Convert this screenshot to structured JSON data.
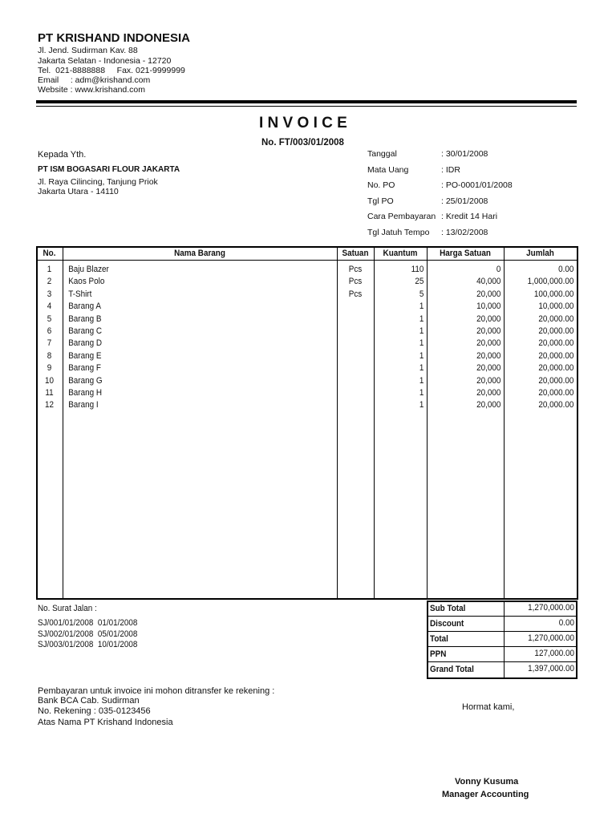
{
  "company": {
    "name": "PT KRISHAND INDONESIA",
    "address1": "Jl. Jend. Sudirman Kav. 88",
    "address2": "Jakarta Selatan - Indonesia - 12720",
    "phone": "Tel.  021-8888888     Fax. 021-9999999",
    "email": "Email     : adm@krishand.com",
    "website": "Website : www.krishand.com"
  },
  "invoice": {
    "title": "I N V O I C E",
    "number": "No. FT/003/01/2008"
  },
  "customer": {
    "greeting": "Kepada Yth.",
    "name": "PT ISM BOGASARI FLOUR JAKARTA",
    "address1": "Jl. Raya Cilincing, Tanjung Priok",
    "address2": "Jakarta Utara - 14110"
  },
  "meta": [
    {
      "label": "Tanggal",
      "value": ": 30/01/2008"
    },
    {
      "label": "Mata Uang",
      "value": ": IDR"
    },
    {
      "label": "No. PO",
      "value": ": PO-0001/01/2008"
    },
    {
      "label": "Tgl PO",
      "value": ": 25/01/2008"
    },
    {
      "label": "Cara Pembayaran",
      "value": ": Kredit 14 Hari"
    },
    {
      "label": "Tgl Jatuh Tempo",
      "value": ": 13/02/2008"
    }
  ],
  "table": {
    "headers": [
      "No.",
      "Nama Barang",
      "Satuan",
      "Kuantum",
      "Harga Satuan",
      "Jumlah"
    ],
    "rows": [
      [
        "1",
        "Baju Blazer",
        "Pcs",
        "110",
        "0",
        "0.00"
      ],
      [
        "2",
        "Kaos Polo",
        "Pcs",
        "25",
        "40,000",
        "1,000,000.00"
      ],
      [
        "3",
        "T-Shirt",
        "Pcs",
        "5",
        "20,000",
        "100,000.00"
      ],
      [
        "4",
        "Barang A",
        "",
        "1",
        "10,000",
        "10,000.00"
      ],
      [
        "5",
        "Barang B",
        "",
        "1",
        "20,000",
        "20,000.00"
      ],
      [
        "6",
        "Barang C",
        "",
        "1",
        "20,000",
        "20,000.00"
      ],
      [
        "7",
        "Barang D",
        "",
        "1",
        "20,000",
        "20,000.00"
      ],
      [
        "8",
        "Barang E",
        "",
        "1",
        "20,000",
        "20,000.00"
      ],
      [
        "9",
        "Barang F",
        "",
        "1",
        "20,000",
        "20,000.00"
      ],
      [
        "10",
        "Barang G",
        "",
        "1",
        "20,000",
        "20,000.00"
      ],
      [
        "11",
        "Barang H",
        "",
        "1",
        "20,000",
        "20,000.00"
      ],
      [
        "12",
        "Barang I",
        "",
        "1",
        "20,000",
        "20,000.00"
      ]
    ]
  },
  "delivery": {
    "label": "No. Surat Jalan :",
    "items": [
      "SJ/001/01/2008  01/01/2008",
      "SJ/002/01/2008  05/01/2008",
      "SJ/003/01/2008  10/01/2008"
    ]
  },
  "totals": [
    {
      "label": "Sub Total",
      "value": "1,270,000.00"
    },
    {
      "label": "Discount",
      "value": "0.00"
    },
    {
      "label": "Total",
      "value": "1,270,000.00"
    },
    {
      "label": "PPN",
      "value": "127,000.00"
    },
    {
      "label": "Grand Total",
      "value": "1,397,000.00"
    }
  ],
  "payment": {
    "line1": "Pembayaran untuk invoice ini mohon ditransfer ke rekening :",
    "line2": "Bank BCA Cab. Sudirman",
    "line3": "No. Rekening : 035-0123456",
    "line4": "Atas Nama PT Krishand Indonesia"
  },
  "signature": {
    "closing": "Hormat kami,",
    "name": "Vonny Kusuma",
    "title": "Manager Accounting"
  }
}
